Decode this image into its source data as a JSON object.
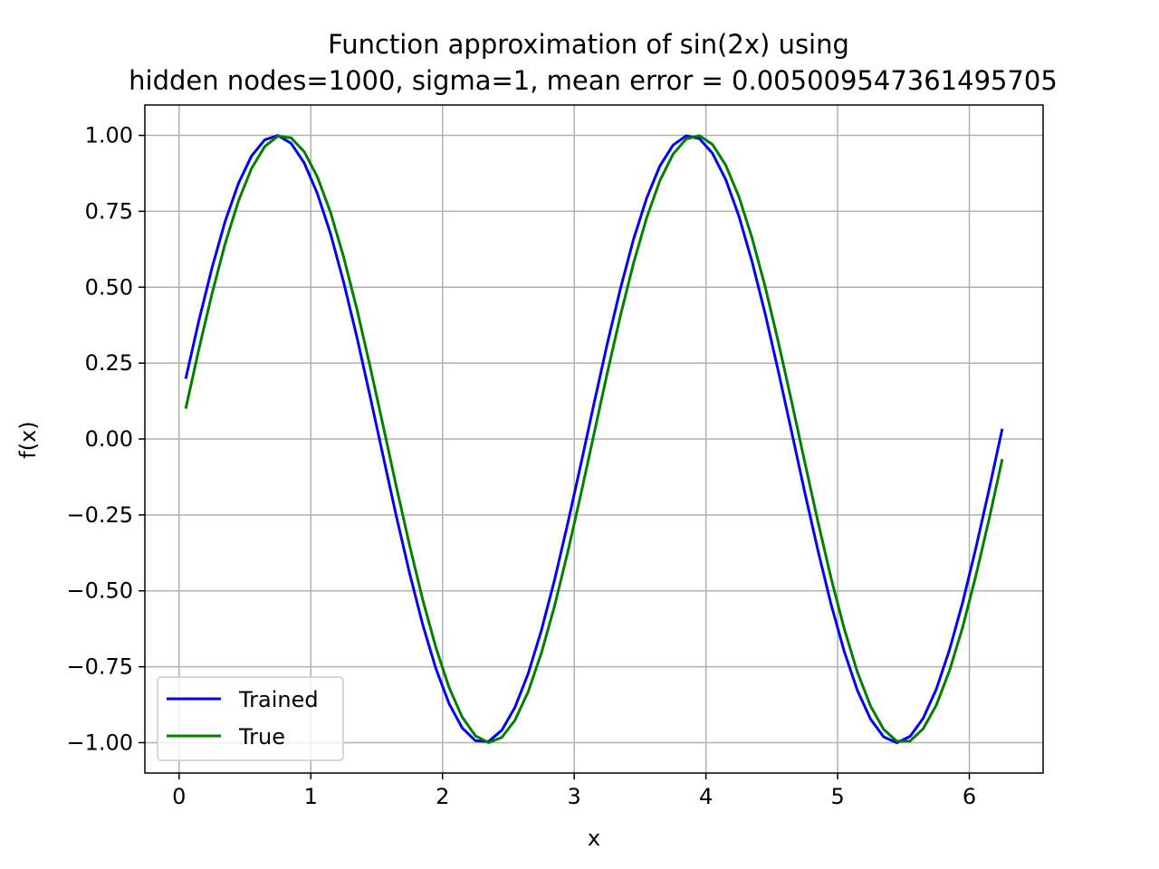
{
  "chart_data": {
    "type": "line",
    "title_line1": "Function approximation of sin(2x) using",
    "title_line2": "hidden nodes=1000, sigma=1, mean error = 0.005009547361495705",
    "xlabel": "x",
    "ylabel": "f(x)",
    "xlim": [
      -0.26,
      6.56
    ],
    "ylim": [
      -1.1,
      1.1
    ],
    "xticks": [
      0,
      1,
      2,
      3,
      4,
      5,
      6
    ],
    "xtick_labels": [
      "0",
      "1",
      "2",
      "3",
      "4",
      "5",
      "6"
    ],
    "yticks": [
      1.0,
      0.75,
      0.5,
      0.25,
      0.0,
      -0.25,
      -0.5,
      -0.75,
      -1.0
    ],
    "ytick_labels": [
      "1.00",
      "0.75",
      "0.50",
      "0.25",
      "0.00",
      "−0.25",
      "−0.50",
      "−0.75",
      "−1.00"
    ],
    "grid": true,
    "legend_position": "lower-left",
    "series": [
      {
        "name": "Trained",
        "color": "#0000ff",
        "x_start": 0.05,
        "x_end": 6.25,
        "n_points": 63,
        "function": "sin(2x + 0.1)"
      },
      {
        "name": "True",
        "color": "#008000",
        "x_start": 0.05,
        "x_end": 6.25,
        "n_points": 63,
        "function": "sin(2x)"
      }
    ]
  }
}
